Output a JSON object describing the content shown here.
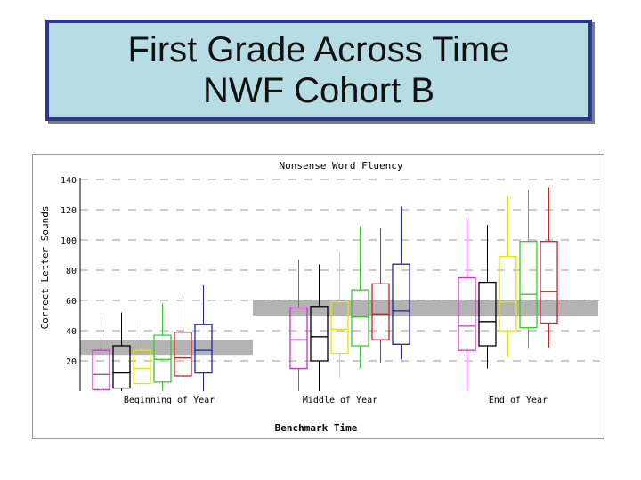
{
  "slide": {
    "title_line1": "First Grade Across Time",
    "title_line2": "NWF Cohort B"
  },
  "colors": {
    "title_bg": "#b6dde3",
    "title_border": "#2a3690",
    "band": "#b3b3b3",
    "gridline": "#9a9a9a"
  },
  "chart_data": {
    "type": "boxplot",
    "title": "Nonsense Word Fluency",
    "xlabel": "Benchmark Time",
    "ylabel": "Correct Letter Sounds",
    "ylim": [
      0,
      140
    ],
    "yticks": [
      20,
      40,
      60,
      80,
      100,
      120,
      140
    ],
    "categories": [
      "Beginning of Year",
      "Middle of Year",
      "End of Year"
    ],
    "benchmark_bands": [
      {
        "group": "Beginning of Year",
        "low": 24,
        "high": 34
      },
      {
        "group": "Middle of Year",
        "low": 50,
        "high": 60
      },
      {
        "group": "End of Year",
        "low": 50,
        "high": 60
      }
    ],
    "series_colors": [
      "#cc33cc",
      "#000000",
      "#e6e600",
      "#33cc33",
      "#cc2222",
      "#2222aa"
    ],
    "groups": [
      {
        "label": "Beginning of Year",
        "boxes": [
          {
            "color": "#cc33cc",
            "min": 0,
            "q1": 1,
            "median": 11,
            "q3": 27,
            "max": 49
          },
          {
            "color": "#000000",
            "min": 0,
            "q1": 2,
            "median": 12,
            "q3": 30,
            "max": 52
          },
          {
            "color": "#e6e600",
            "min": 0,
            "q1": 5,
            "median": 15,
            "q3": 27,
            "max": 47
          },
          {
            "color": "#33cc33",
            "min": 0,
            "q1": 6,
            "median": 21,
            "q3": 37,
            "max": 58
          },
          {
            "color": "#cc2222",
            "min": 0,
            "q1": 10,
            "median": 22,
            "q3": 39,
            "max": 63
          },
          {
            "color": "#2222aa",
            "min": 0,
            "q1": 12,
            "median": 27,
            "q3": 44,
            "max": 70
          }
        ]
      },
      {
        "label": "Middle of Year",
        "boxes": [
          {
            "color": "#cc33cc",
            "min": 0,
            "q1": 15,
            "median": 34,
            "q3": 55,
            "max": 87
          },
          {
            "color": "#000000",
            "min": 0,
            "q1": 20,
            "median": 36,
            "q3": 56,
            "max": 84
          },
          {
            "color": "#e6e600",
            "min": 9,
            "q1": 25,
            "median": 41,
            "q3": 59,
            "max": 92
          },
          {
            "color": "#33cc33",
            "min": 15,
            "q1": 30,
            "median": 49,
            "q3": 67,
            "max": 109
          },
          {
            "color": "#cc2222",
            "min": 19,
            "q1": 34,
            "median": 51,
            "q3": 71,
            "max": 108
          },
          {
            "color": "#2222aa",
            "min": 21,
            "q1": 31,
            "median": 53,
            "q3": 84,
            "max": 122
          }
        ]
      },
      {
        "label": "End of Year",
        "boxes": [
          {
            "color": "#cc33cc",
            "min": 0,
            "q1": 27,
            "median": 43,
            "q3": 75,
            "max": 115
          },
          {
            "color": "#000000",
            "min": 15,
            "q1": 30,
            "median": 46,
            "q3": 72,
            "max": 110
          },
          {
            "color": "#e6e600",
            "min": 23,
            "q1": 40,
            "median": 59,
            "q3": 89,
            "max": 129
          },
          {
            "color": "#33cc33",
            "min": 28,
            "q1": 42,
            "median": 64,
            "q3": 99,
            "max": 133
          },
          {
            "color": "#cc2222",
            "min": 29,
            "q1": 45,
            "median": 66,
            "q3": 99,
            "max": 135
          }
        ]
      }
    ]
  }
}
